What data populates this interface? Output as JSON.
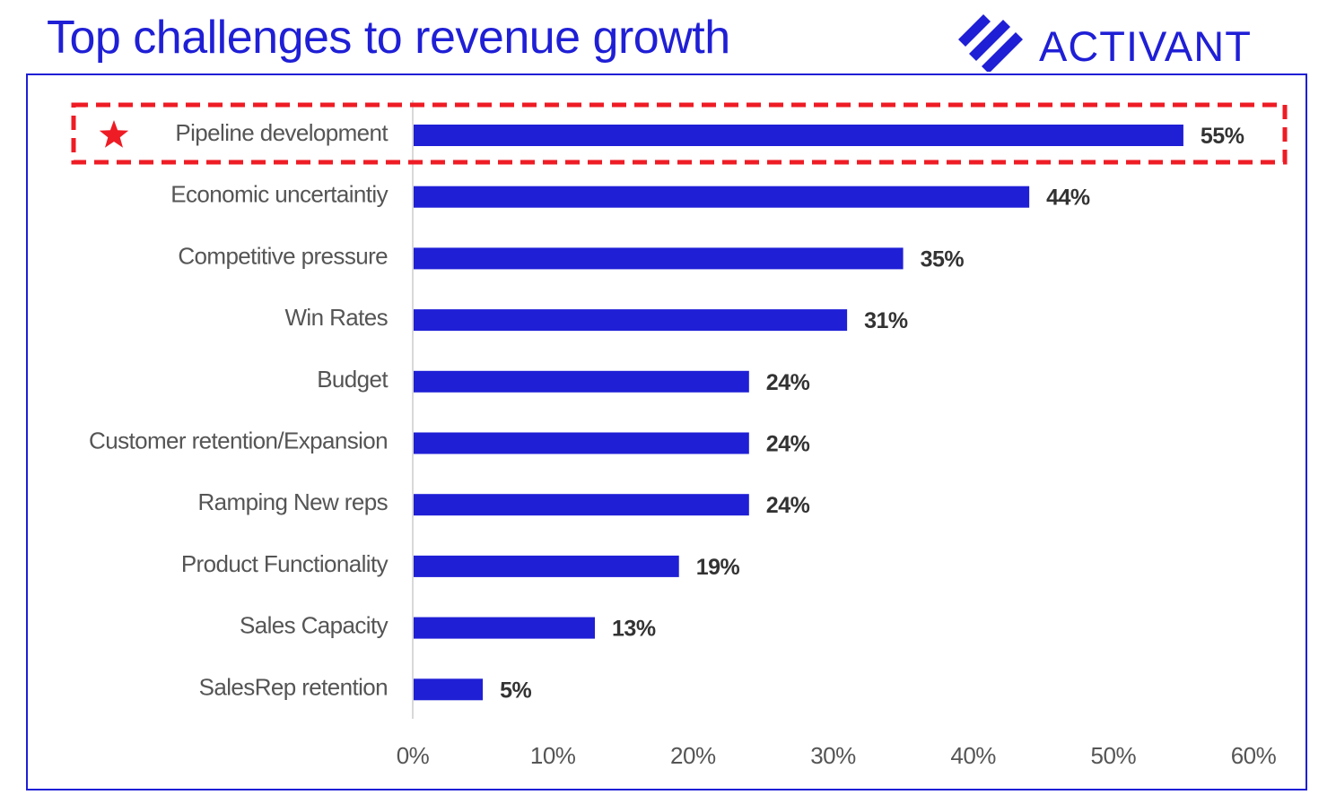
{
  "header": {
    "title": "Top challenges to revenue growth",
    "logo_text": "ACTIVANT"
  },
  "colors": {
    "accent": "#1f1fd6",
    "highlight": "#ee1c25",
    "label_text": "#555555",
    "value_text": "#333333"
  },
  "icons": {
    "highlight_marker": "star-icon"
  },
  "chart_data": {
    "type": "bar",
    "orientation": "horizontal",
    "categories": [
      "Pipeline development",
      "Economic uncertaintiy",
      "Competitive pressure",
      "Win Rates",
      "Budget",
      "Customer retention/Expansion",
      "Ramping New reps",
      "Product Functionality",
      "Sales Capacity",
      "SalesRep retention"
    ],
    "values": [
      55,
      44,
      35,
      31,
      24,
      24,
      24,
      19,
      13,
      5
    ],
    "value_labels": [
      "55%",
      "44%",
      "35%",
      "31%",
      "24%",
      "24%",
      "24%",
      "19%",
      "13%",
      "5%"
    ],
    "x_ticks": [
      "0%",
      "10%",
      "20%",
      "30%",
      "40%",
      "50%",
      "60%"
    ],
    "xlim": [
      0,
      60
    ],
    "highlighted_category": "Pipeline development",
    "grid": false,
    "legend": "none"
  }
}
